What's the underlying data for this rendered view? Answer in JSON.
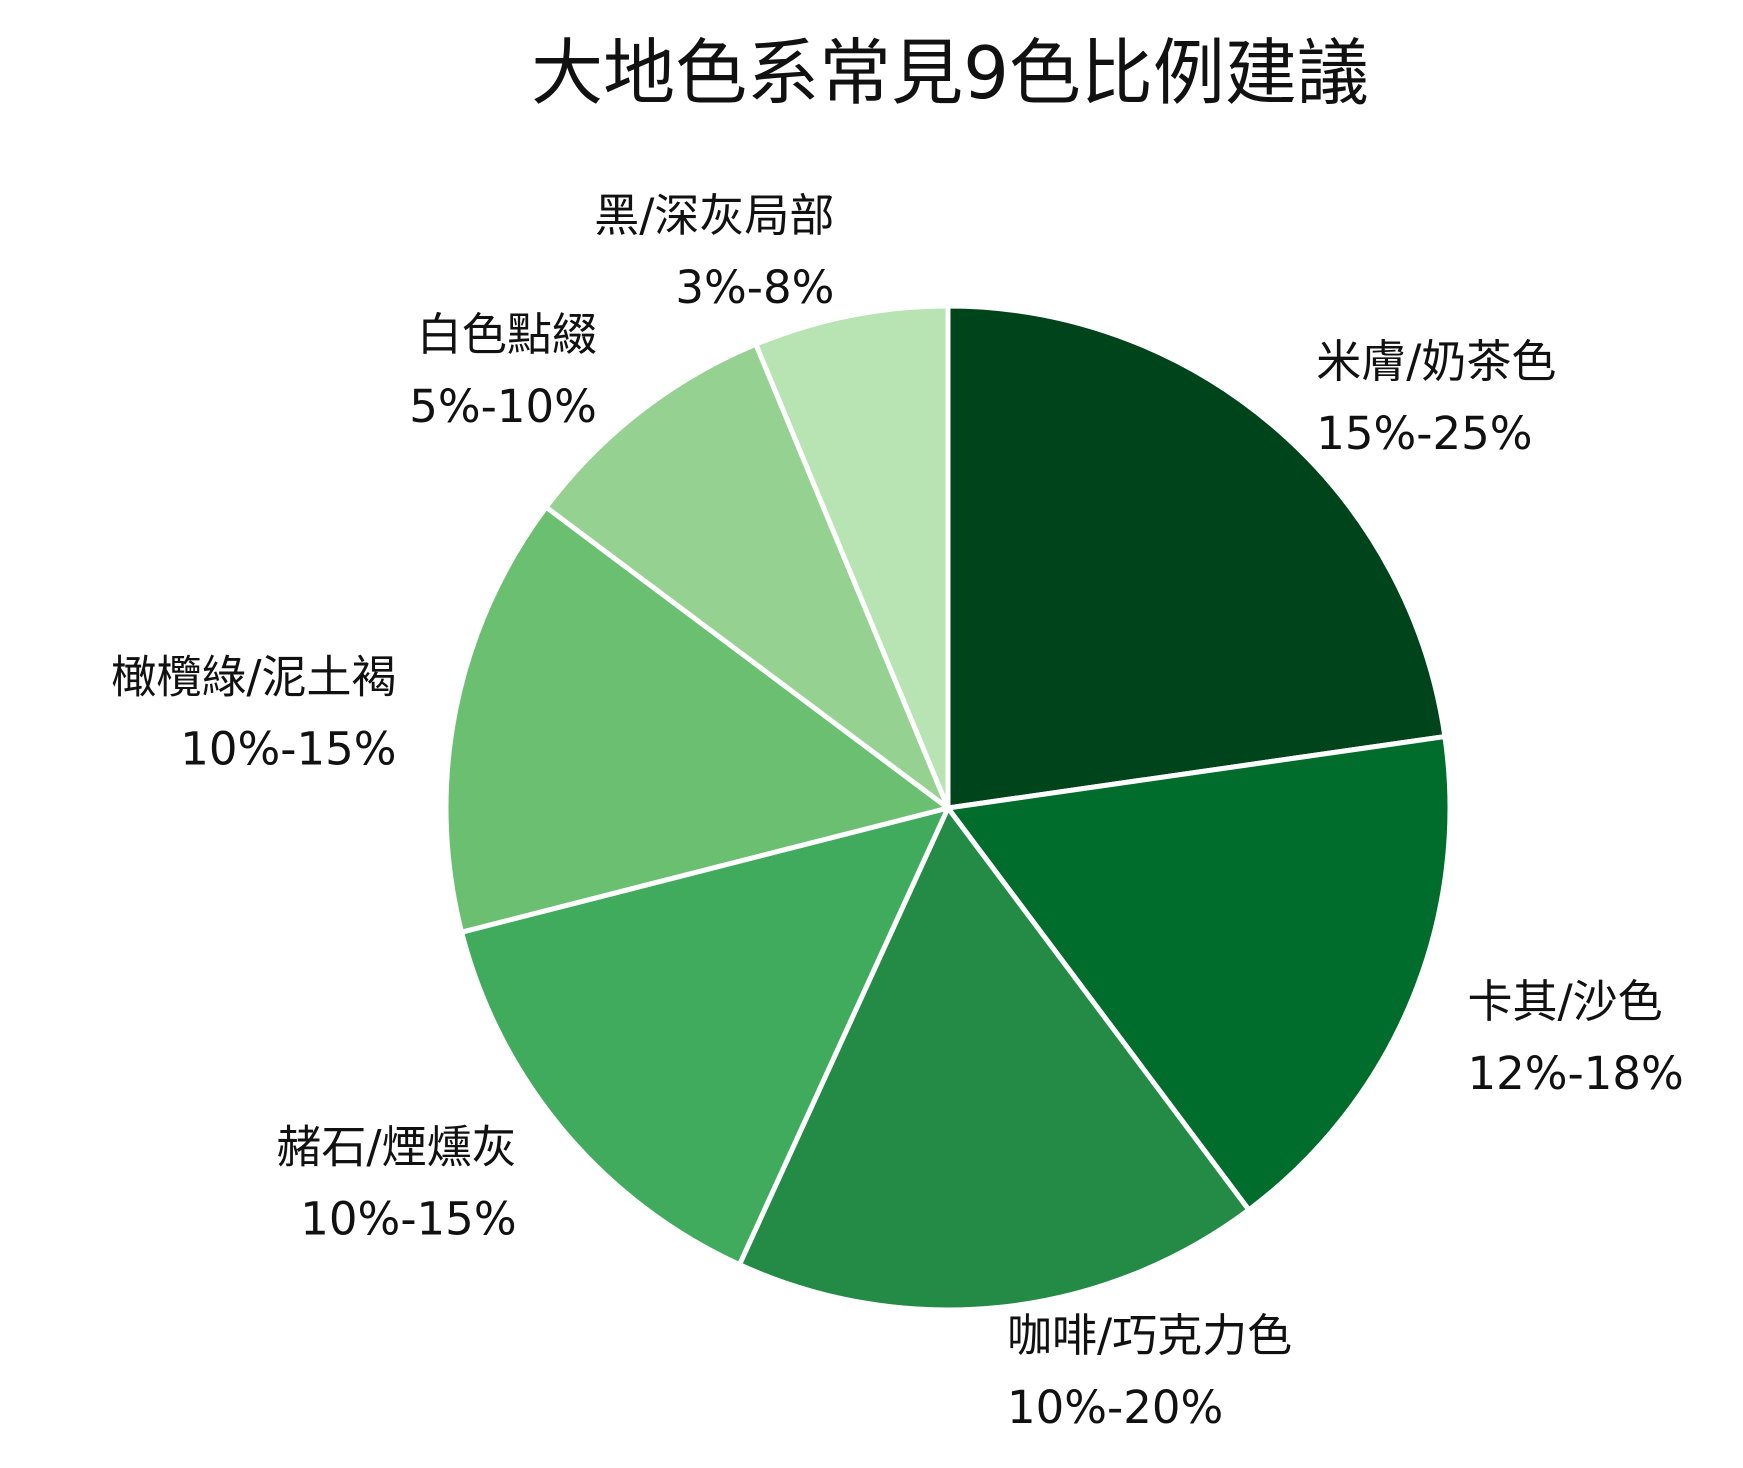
{
  "chart_data": {
    "type": "pie",
    "title": "大地色系常見9色比例建議",
    "slices": [
      {
        "label": "米膚/奶茶色",
        "range": "15%-25%",
        "value": 20,
        "color": "#00441b"
      },
      {
        "label": "卡其/沙色",
        "range": "12%-18%",
        "value": 15,
        "color": "#006d2c"
      },
      {
        "label": "咖啡/巧克力色",
        "range": "10%-20%",
        "value": 15,
        "color": "#238b45"
      },
      {
        "label": "赭石/煙燻灰",
        "range": "10%-15%",
        "value": 12.5,
        "color": "#41ab5d"
      },
      {
        "label": "橄欖綠/泥土褐",
        "range": "10%-15%",
        "value": 12.5,
        "color": "#6abf71"
      },
      {
        "label": "白色點綴",
        "range": "5%-10%",
        "value": 7.5,
        "color": "#95d190"
      },
      {
        "label": "黑/深灰局部",
        "range": "3%-8%",
        "value": 5.5,
        "color": "#b8e3b2"
      }
    ],
    "start_angle": "12 o'clock",
    "direction": "clockwise",
    "slice_border_color": "#ffffff",
    "legend": "none"
  }
}
